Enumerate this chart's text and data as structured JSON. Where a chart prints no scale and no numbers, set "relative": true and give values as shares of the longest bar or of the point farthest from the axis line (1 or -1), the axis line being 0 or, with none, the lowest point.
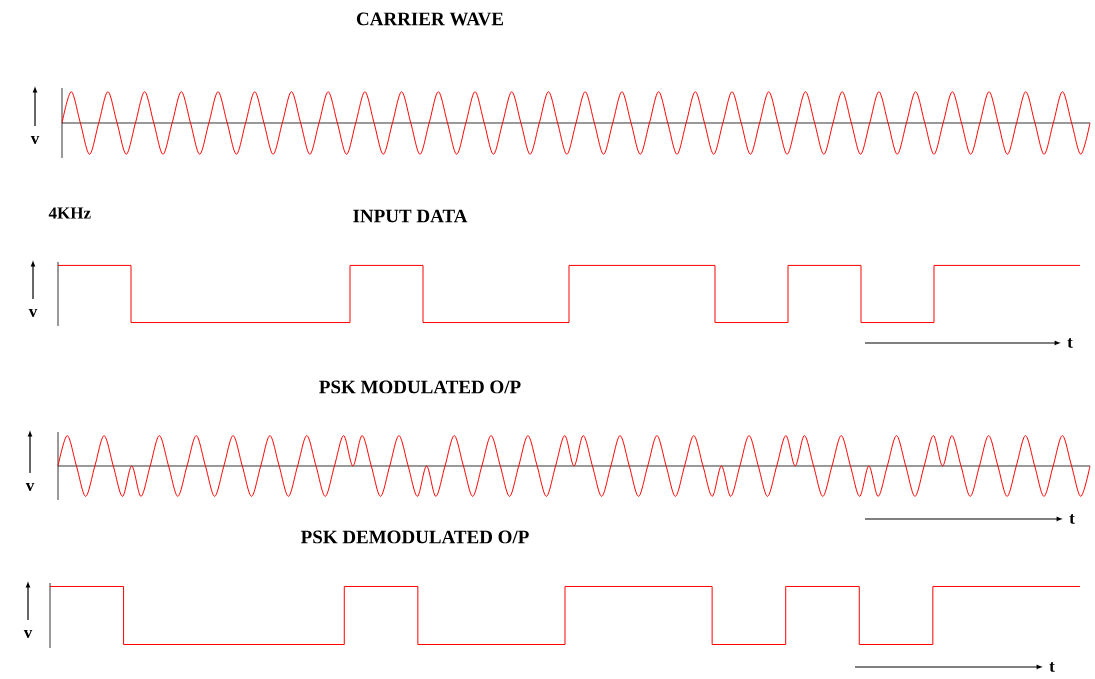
{
  "chart_data": [
    {
      "type": "line",
      "title": "CARRIER WAVE",
      "ylabel": "v",
      "relative": true,
      "annotations": [
        "4KHz"
      ],
      "categories": [
        null,
        null,
        null,
        null,
        null,
        null,
        null,
        null,
        null,
        null,
        null,
        null,
        null,
        null,
        null,
        null,
        null,
        null,
        null,
        null,
        null,
        null,
        null,
        null,
        null,
        null,
        null,
        null,
        null,
        null,
        null,
        null,
        null,
        null,
        null,
        null,
        null,
        null,
        null,
        null,
        null,
        null,
        null,
        null,
        null,
        null,
        null,
        null,
        null,
        null,
        null,
        null,
        null,
        null,
        null,
        null,
        null,
        null,
        null,
        null,
        null,
        null,
        null,
        null,
        null,
        null,
        null,
        null,
        null,
        null,
        null,
        null,
        null,
        null,
        null,
        null,
        null,
        null,
        null,
        null,
        null,
        null,
        null,
        null,
        null,
        null,
        null,
        null,
        null,
        null,
        null,
        null,
        null,
        null,
        null,
        null,
        null,
        null,
        null,
        null,
        null,
        null,
        null,
        null,
        null,
        null,
        null,
        null,
        null,
        null,
        null,
        null,
        null
      ],
      "series": [
        {
          "color": "#ff0000",
          "values": [
            0,
            1,
            0,
            -1,
            0,
            1,
            0,
            -1,
            0,
            1,
            0,
            -1,
            0,
            1,
            0,
            -1,
            0,
            1,
            0,
            -1,
            0,
            1,
            0,
            -1,
            0,
            1,
            0,
            -1,
            0,
            1,
            0,
            -1,
            0,
            1,
            0,
            -1,
            0,
            1,
            0,
            -1,
            0,
            1,
            0,
            -1,
            0,
            1,
            0,
            -1,
            0,
            1,
            0,
            -1,
            0,
            1,
            0,
            -1,
            0,
            1,
            0,
            -1,
            0,
            1,
            0,
            -1,
            0,
            1,
            0,
            -1,
            0,
            1,
            0,
            -1,
            0,
            1,
            0,
            -1,
            0,
            1,
            0,
            -1,
            0,
            1,
            0,
            -1,
            0,
            1,
            0,
            -1,
            0,
            1,
            0,
            -1,
            0,
            1,
            0,
            -1,
            0,
            1,
            0,
            -1,
            0,
            1,
            0,
            -1,
            0,
            1,
            0,
            -1,
            0,
            1,
            0,
            -1,
            0
          ]
        }
      ]
    },
    {
      "type": "step",
      "title": "INPUT DATA",
      "ylabel": "v",
      "xlabel": "t",
      "relative": true,
      "categories": [
        null,
        null,
        null,
        null,
        null,
        null,
        null,
        null,
        null,
        null,
        null,
        null,
        null,
        null,
        null
      ],
      "series": [
        {
          "color": "#ff0000",
          "values": [
            1,
            0,
            0,
            0,
            1,
            0,
            0,
            1,
            1,
            0,
            1,
            0,
            1,
            1,
            1
          ]
        }
      ]
    },
    {
      "type": "line",
      "title": "PSK MODULATED O/P",
      "ylabel": "v",
      "xlabel": "t",
      "relative": true,
      "categories": [
        null,
        null,
        null,
        null,
        null,
        null,
        null,
        null,
        null,
        null,
        null,
        null,
        null,
        null,
        null,
        null,
        null,
        null,
        null,
        null,
        null,
        null,
        null,
        null,
        null,
        null,
        null,
        null,
        null,
        null,
        null,
        null,
        null,
        null,
        null,
        null,
        null,
        null,
        null,
        null,
        null,
        null,
        null,
        null,
        null,
        null,
        null,
        null,
        null,
        null,
        null,
        null,
        null,
        null,
        null,
        null,
        null,
        null,
        null,
        null,
        null,
        null,
        null,
        null,
        null,
        null,
        null,
        null,
        null,
        null,
        null,
        null,
        null,
        null,
        null,
        null,
        null,
        null,
        null,
        null,
        null,
        null,
        null,
        null,
        null,
        null,
        null,
        null,
        null,
        null,
        null,
        null,
        null,
        null,
        null,
        null,
        null,
        null,
        null,
        null,
        null,
        null,
        null,
        null,
        null,
        null,
        null,
        null,
        null,
        null,
        null,
        null,
        null
      ],
      "series": [
        {
          "color": "#ff0000",
          "values": [
            0,
            1,
            0,
            -1,
            0,
            1,
            0,
            -1,
            0,
            -1,
            0,
            1,
            0,
            -1,
            0,
            1,
            0,
            -1,
            0,
            1,
            0,
            -1,
            0,
            1,
            0,
            -1,
            0,
            1,
            0,
            -1,
            0,
            1,
            0,
            1,
            0,
            -1,
            0,
            1,
            0,
            -1,
            0,
            -1,
            0,
            1,
            0,
            -1,
            0,
            1,
            0,
            -1,
            0,
            1,
            0,
            -1,
            0,
            1,
            0,
            1,
            0,
            -1,
            0,
            1,
            0,
            -1,
            0,
            1,
            0,
            -1,
            0,
            1,
            0,
            -1,
            0,
            -1,
            0,
            1,
            0,
            -1,
            0,
            1,
            0,
            1,
            0,
            -1,
            0,
            1,
            0,
            -1,
            0,
            -1,
            0,
            1,
            0,
            -1,
            0,
            1,
            0,
            1,
            0,
            -1,
            0,
            1,
            0,
            -1,
            0,
            1,
            0,
            -1,
            0,
            1,
            0,
            -1,
            0
          ]
        }
      ]
    },
    {
      "type": "step",
      "title": "PSK DEMODULATED O/P",
      "ylabel": "v",
      "xlabel": "t",
      "relative": true,
      "categories": [
        null,
        null,
        null,
        null,
        null,
        null,
        null,
        null,
        null,
        null,
        null,
        null,
        null,
        null,
        null
      ],
      "series": [
        {
          "color": "#ff0000",
          "values": [
            1,
            0,
            0,
            0,
            1,
            0,
            0,
            1,
            1,
            0,
            1,
            0,
            1,
            1,
            1
          ]
        }
      ]
    }
  ]
}
